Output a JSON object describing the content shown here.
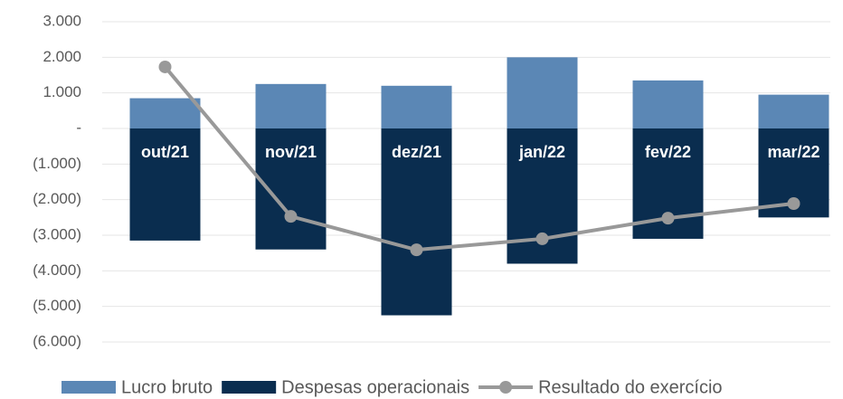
{
  "chart_data": {
    "type": "bar",
    "categories": [
      "out/21",
      "nov/21",
      "dez/21",
      "jan/22",
      "fev/22",
      "mar/22"
    ],
    "series": [
      {
        "name": "Lucro bruto",
        "color": "#5b87b5",
        "values": [
          850,
          1250,
          1200,
          2000,
          1350,
          950
        ]
      },
      {
        "name": "Despesas operacionais",
        "color": "#0a2d4f",
        "values": [
          -3150,
          -3400,
          -5250,
          -3800,
          -3100,
          -2500
        ]
      },
      {
        "name": "Resultado do exercício",
        "type": "line",
        "color": "#999999",
        "values": [
          1730,
          -2470,
          -3410,
          -3100,
          -2520,
          -2110
        ]
      }
    ],
    "ylim": [
      -6000,
      3000
    ],
    "yticks": [
      {
        "value": 3000,
        "label": "3.000"
      },
      {
        "value": 2000,
        "label": "2.000"
      },
      {
        "value": 1000,
        "label": "1.000"
      },
      {
        "value": 0,
        "label": "-"
      },
      {
        "value": -1000,
        "label": "(1.000)"
      },
      {
        "value": -2000,
        "label": "(2.000)"
      },
      {
        "value": -3000,
        "label": "(3.000)"
      },
      {
        "value": -4000,
        "label": "(4.000)"
      },
      {
        "value": -5000,
        "label": "(5.000)"
      },
      {
        "value": -6000,
        "label": "(6.000)"
      }
    ],
    "grid": true
  }
}
